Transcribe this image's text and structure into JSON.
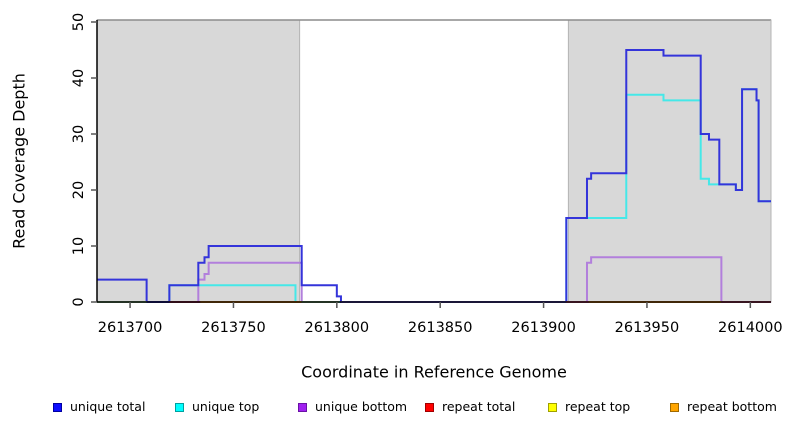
{
  "chart_data": {
    "type": "line",
    "title": "",
    "xlabel": "Coordinate in Reference Genome",
    "ylabel": "Read Coverage Depth",
    "xlim": [
      2613684,
      2614010
    ],
    "ylim": [
      0,
      50
    ],
    "x_ticks": [
      2613700,
      2613750,
      2613800,
      2613850,
      2613900,
      2613950,
      2614000
    ],
    "y_ticks": [
      0,
      10,
      20,
      30,
      40,
      50
    ],
    "grid": "off",
    "step_mode": "post",
    "plot_bg": "#ffffff",
    "highlight_regions": [
      {
        "name": "repeat-region-left",
        "x0": 2613684,
        "x1": 2613782,
        "fill": "#d8d8d8",
        "border": "#b5b5b5"
      },
      {
        "name": "repeat-region-right",
        "x0": 2613912,
        "x1": 2614010,
        "fill": "#d8d8d8",
        "border": "#b5b5b5"
      }
    ],
    "series": [
      {
        "name": "repeat total",
        "line_color": "#cc2a5a",
        "points": [
          [
            2613684,
            0
          ],
          [
            2614010,
            0
          ]
        ]
      },
      {
        "name": "repeat top",
        "line_color": "#d8d800",
        "points": [
          [
            2613684,
            0
          ],
          [
            2614010,
            0
          ]
        ]
      },
      {
        "name": "repeat bottom",
        "line_color": "#ff9d1e",
        "points": [
          [
            2613684,
            0
          ],
          [
            2614010,
            0
          ]
        ]
      },
      {
        "name": "unique bottom",
        "line_color": "#b27fdc",
        "points": [
          [
            2613684,
            0
          ],
          [
            2613733,
            4
          ],
          [
            2613736,
            5
          ],
          [
            2613738,
            7
          ],
          [
            2613783,
            0
          ],
          [
            2613921,
            7
          ],
          [
            2613923,
            8
          ],
          [
            2613986,
            0
          ],
          [
            2614010,
            0
          ]
        ]
      },
      {
        "name": "unique top",
        "line_color": "#45e8e8",
        "points": [
          [
            2613684,
            0
          ],
          [
            2613719,
            3
          ],
          [
            2613780,
            0
          ],
          [
            2613911,
            15
          ],
          [
            2613940,
            37
          ],
          [
            2613958,
            36
          ],
          [
            2613976,
            22
          ],
          [
            2613980,
            21
          ],
          [
            2613993,
            20
          ],
          [
            2613996,
            38
          ],
          [
            2614003,
            36
          ],
          [
            2614004,
            18
          ],
          [
            2614010,
            18
          ]
        ]
      },
      {
        "name": "unique total",
        "line_color": "#3434da",
        "points": [
          [
            2613684,
            4
          ],
          [
            2613708,
            0
          ],
          [
            2613719,
            3
          ],
          [
            2613733,
            7
          ],
          [
            2613736,
            8
          ],
          [
            2613738,
            10
          ],
          [
            2613783,
            3
          ],
          [
            2613800,
            1
          ],
          [
            2613802,
            0
          ],
          [
            2613911,
            15
          ],
          [
            2613921,
            22
          ],
          [
            2613923,
            23
          ],
          [
            2613940,
            45
          ],
          [
            2613958,
            44
          ],
          [
            2613976,
            30
          ],
          [
            2613980,
            29
          ],
          [
            2613985,
            21
          ],
          [
            2613993,
            20
          ],
          [
            2613996,
            38
          ],
          [
            2614003,
            36
          ],
          [
            2614004,
            18
          ],
          [
            2614010,
            18
          ]
        ]
      }
    ],
    "baseline_overlap_segments": [
      {
        "x0": 2613684,
        "x1": 2613708,
        "color": "#8fcb8f"
      },
      {
        "x0": 2613708,
        "x1": 2613719,
        "color": "#3434da"
      },
      {
        "x0": 2613719,
        "x1": 2613734,
        "color": "#c23b63"
      },
      {
        "x0": 2613734,
        "x1": 2613783,
        "color": "#ff9d1e"
      },
      {
        "x0": 2613783,
        "x1": 2613801,
        "color": "#8fcb8f"
      },
      {
        "x0": 2613802,
        "x1": 2613911,
        "color": "#6a5ae0"
      },
      {
        "x0": 2613911,
        "x1": 2613922,
        "color": "#e0557f"
      },
      {
        "x0": 2613922,
        "x1": 2613986,
        "color": "#ff9d1e"
      },
      {
        "x0": 2613986,
        "x1": 2614010,
        "color": "#e0557f"
      }
    ],
    "legend": {
      "position": "bottom",
      "entries": [
        {
          "label": "unique total",
          "fill": "#0d0dff",
          "border": "#0000a0"
        },
        {
          "label": "unique top",
          "fill": "#00ffff",
          "border": "#00a0a0"
        },
        {
          "label": "unique bottom",
          "fill": "#a020f0",
          "border": "#6a12a6"
        },
        {
          "label": "repeat total",
          "fill": "#ff0000",
          "border": "#a00000"
        },
        {
          "label": "repeat top",
          "fill": "#ffff00",
          "border": "#a0a000"
        },
        {
          "label": "repeat bottom",
          "fill": "#ffa500",
          "border": "#a06a00"
        }
      ]
    }
  },
  "labels": {
    "x_axis_title": "Coordinate in Reference Genome",
    "y_axis_title": "Read Coverage Depth"
  }
}
